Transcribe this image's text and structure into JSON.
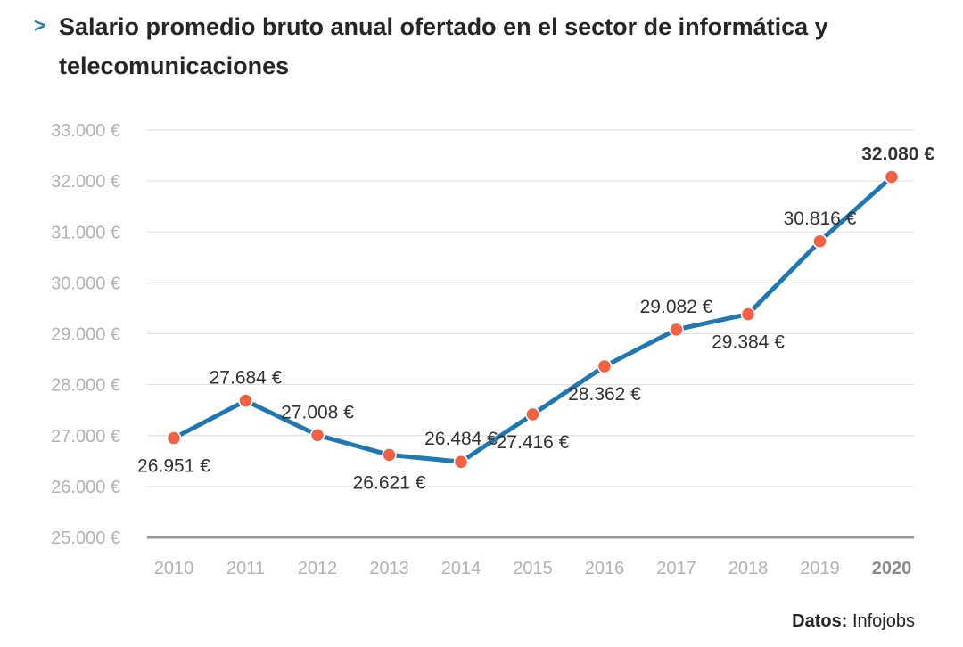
{
  "title_prefix": ">",
  "source": {
    "label": "Datos:",
    "value": "Infojobs"
  },
  "colors": {
    "line": "#1f77b4",
    "marker": "#f26144",
    "grid": "#dddddd",
    "axis": "#999999",
    "tick": "#b3b3b3",
    "label": "#333333"
  },
  "chart_data": {
    "type": "line",
    "title": "Salario promedio bruto anual ofertado en el sector de informática y telecomunicaciones",
    "xlabel": "",
    "ylabel": "",
    "categories": [
      "2010",
      "2011",
      "2012",
      "2013",
      "2014",
      "2015",
      "2016",
      "2017",
      "2018",
      "2019",
      "2020"
    ],
    "values": [
      26951,
      27684,
      27008,
      26621,
      26484,
      27416,
      28362,
      29082,
      29384,
      30816,
      32080
    ],
    "data_labels": [
      "26.951 €",
      "27.684 €",
      "27.008 €",
      "26.621 €",
      "26.484 €",
      "27.416 €",
      "28.362 €",
      "29.082 €",
      "29.384 €",
      "30.816 €",
      "32.080 €"
    ],
    "label_positions": [
      "below",
      "above",
      "above",
      "below",
      "above",
      "below",
      "below",
      "above",
      "below",
      "above",
      "above"
    ],
    "highlight_index": 10,
    "ylim": [
      25000,
      33000
    ],
    "yticks": [
      25000,
      26000,
      27000,
      28000,
      29000,
      30000,
      31000,
      32000,
      33000
    ],
    "ytick_labels": [
      "25.000 €",
      "26.000 €",
      "27.000 €",
      "28.000 €",
      "29.000 €",
      "30.000 €",
      "31.000 €",
      "32.000 €",
      "33.000 €"
    ],
    "grid": true
  }
}
